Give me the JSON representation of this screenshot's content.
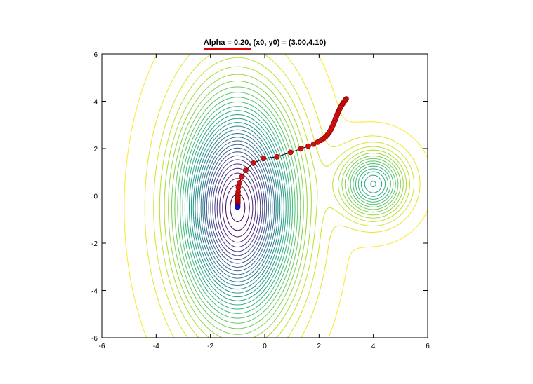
{
  "chart_data": {
    "type": "line",
    "title": "Alpha = 0.20, (x0, y0) = (3.00,4.10)",
    "xlabel": "",
    "ylabel": "",
    "xlim": [
      -6,
      6
    ],
    "ylim": [
      -6,
      6
    ],
    "x_ticks": [
      -6,
      -4,
      -2,
      0,
      2,
      4,
      6
    ],
    "y_ticks": [
      -6,
      -4,
      -2,
      0,
      2,
      4,
      6
    ],
    "x_tick_labels": [
      "-6",
      "-4",
      "-2",
      "0",
      "2",
      "4",
      "6"
    ],
    "y_tick_labels": [
      "-6",
      "-4",
      "-2",
      "0",
      "2",
      "4",
      "6"
    ],
    "grid": false,
    "legend": "none",
    "contours": {
      "colormap": "viridis",
      "minima": [
        {
          "x": -1.0,
          "y": -0.5,
          "sx": 1.9,
          "sy": 4.2,
          "depth": 1.0
        },
        {
          "x": 4.0,
          "y": 0.5,
          "sx": 1.1,
          "sy": 1.3,
          "depth": 0.45
        }
      ],
      "levels": 32
    },
    "path": {
      "color": "#d01010",
      "line_color": "#000000",
      "points": [
        [
          3.0,
          4.1
        ],
        [
          2.97,
          4.06
        ],
        [
          2.94,
          4.01
        ],
        [
          2.91,
          3.96
        ],
        [
          2.88,
          3.91
        ],
        [
          2.85,
          3.86
        ],
        [
          2.82,
          3.8
        ],
        [
          2.79,
          3.74
        ],
        [
          2.76,
          3.67
        ],
        [
          2.73,
          3.6
        ],
        [
          2.7,
          3.52
        ],
        [
          2.67,
          3.44
        ],
        [
          2.64,
          3.36
        ],
        [
          2.61,
          3.27
        ],
        [
          2.58,
          3.18
        ],
        [
          2.55,
          3.09
        ],
        [
          2.51,
          2.99
        ],
        [
          2.47,
          2.89
        ],
        [
          2.43,
          2.79
        ],
        [
          2.38,
          2.69
        ],
        [
          2.32,
          2.6
        ],
        [
          2.25,
          2.51
        ],
        [
          2.17,
          2.43
        ],
        [
          2.07,
          2.35
        ],
        [
          1.95,
          2.27
        ],
        [
          1.8,
          2.19
        ],
        [
          1.6,
          2.1
        ],
        [
          1.33,
          1.99
        ],
        [
          0.95,
          1.84
        ],
        [
          0.45,
          1.65
        ],
        [
          -0.05,
          1.58
        ],
        [
          -0.42,
          1.38
        ],
        [
          -0.7,
          1.08
        ],
        [
          -0.85,
          0.8
        ],
        [
          -0.93,
          0.55
        ],
        [
          -0.97,
          0.35
        ],
        [
          -0.98,
          0.18
        ],
        [
          -0.99,
          0.05
        ],
        [
          -0.99,
          -0.05
        ],
        [
          -0.99,
          -0.13
        ],
        [
          -0.99,
          -0.2
        ],
        [
          -0.99,
          -0.26
        ],
        [
          -0.99,
          -0.31
        ],
        [
          -1.0,
          -0.35
        ],
        [
          -1.0,
          -0.38
        ],
        [
          -1.0,
          -0.41
        ],
        [
          -1.0,
          -0.43
        ],
        [
          -1.0,
          -0.45
        ]
      ],
      "final_point": {
        "x": -1.0,
        "y": -0.47,
        "color": "#1010e0"
      }
    }
  }
}
